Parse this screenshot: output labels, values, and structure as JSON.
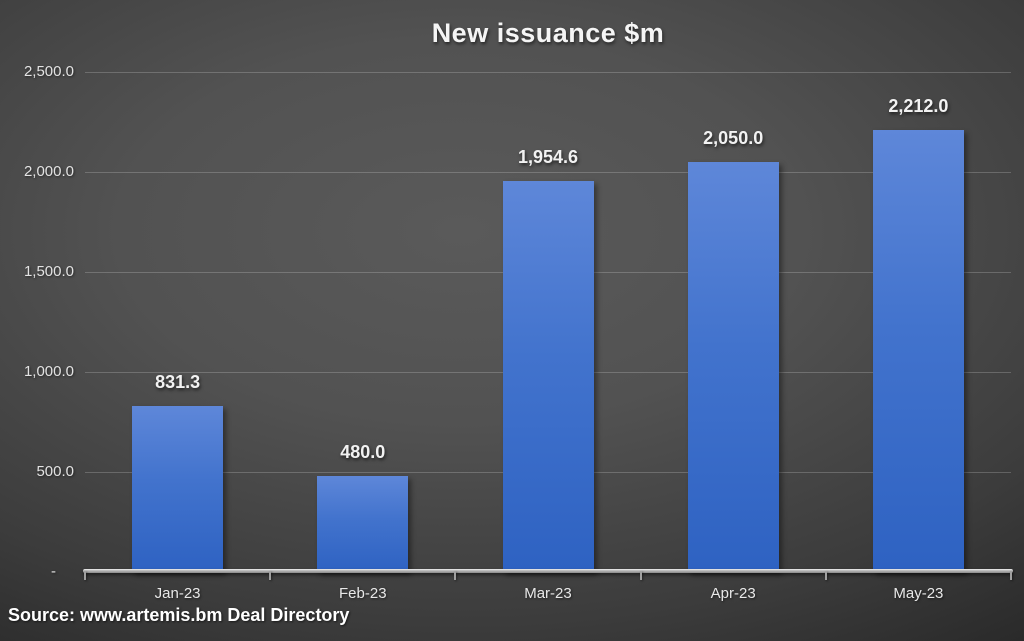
{
  "source": "Source: www.artemis.bm Deal Directory",
  "colors": {
    "bar_gradient_top": "#5e87d9",
    "bar_gradient_mid": "#4273cd",
    "bar_gradient_bottom": "#2e62c2",
    "background_center": "#5a5a5a",
    "background_corner": "#262626",
    "gridline": "rgba(235,235,235,0.22)",
    "axis_line": "#b5b5b5",
    "text": "#f2f2f2"
  },
  "chart_data": {
    "type": "bar",
    "title": "New issuance $m",
    "categories": [
      "Jan-23",
      "Feb-23",
      "Mar-23",
      "Apr-23",
      "May-23"
    ],
    "values": [
      831.3,
      480.0,
      1954.6,
      2050.0,
      2212.0
    ],
    "value_labels": [
      "831.3",
      "480.0",
      "1,954.6",
      "2,050.0",
      "2,212.0"
    ],
    "xlabel": "",
    "ylabel": "",
    "ylim": [
      0,
      2500
    ],
    "ytick_interval": 500,
    "ytick_values": [
      2500,
      2000,
      1500,
      1000,
      500,
      0
    ],
    "ytick_labels": [
      "2,500.0",
      "2,000.0",
      "1,500.0",
      "1,000.0",
      "500.0",
      "-"
    ],
    "grid": true,
    "legend": "none",
    "data_labels": "above-bars"
  }
}
